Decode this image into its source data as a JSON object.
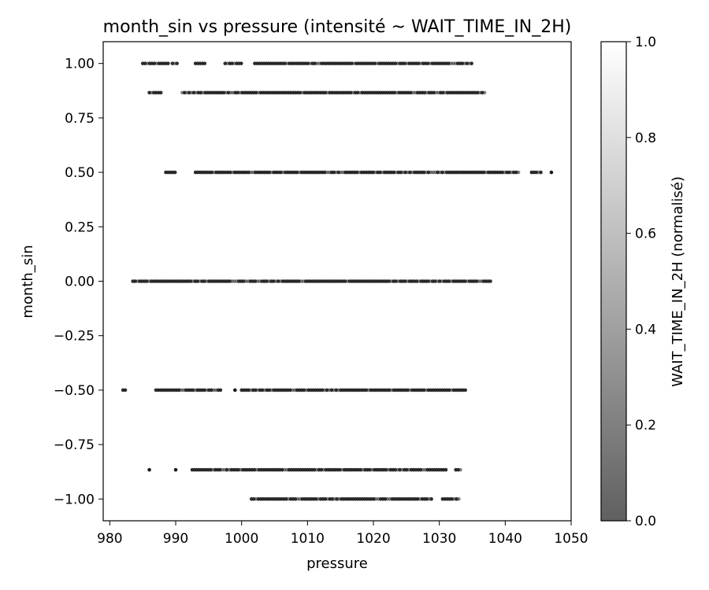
{
  "chart_data": {
    "type": "scatter",
    "title": "month_sin vs pressure (intensité ~ WAIT_TIME_IN_2H)",
    "xlabel": "pressure",
    "ylabel": "month_sin",
    "xlim": [
      979,
      1050
    ],
    "ylim": [
      -1.1,
      1.1
    ],
    "xticks": [
      980,
      990,
      1000,
      1010,
      1020,
      1030,
      1040,
      1050
    ],
    "xtick_labels": [
      "980",
      "990",
      "1000",
      "1010",
      "1020",
      "1030",
      "1040",
      "1050"
    ],
    "yticks": [
      -1.0,
      -0.75,
      -0.5,
      -0.25,
      0.0,
      0.25,
      0.5,
      0.75,
      1.0
    ],
    "ytick_labels": [
      "−1.00",
      "−0.75",
      "−0.50",
      "−0.25",
      "0.00",
      "0.25",
      "0.50",
      "0.75",
      "1.00"
    ],
    "grid": false,
    "colorbar": {
      "label": "WAIT_TIME_IN_2H (normalisé)",
      "range": [
        0,
        1
      ],
      "ticks": [
        0,
        0.2,
        0.4,
        0.6,
        0.8,
        1.0
      ],
      "tick_labels": [
        "0.0",
        "0.2",
        "0.4",
        "0.6",
        "0.8",
        "1.0"
      ],
      "color_low": "#606060",
      "color_high": "#ffffff"
    },
    "point_color": "#1a1a1a",
    "rows": [
      {
        "y": 1.0,
        "segments": [
          [
            985,
            989
          ],
          [
            989.5,
            990.5
          ],
          [
            993,
            994.5
          ],
          [
            997.5,
            1000
          ],
          [
            1002,
            1035
          ]
        ]
      },
      {
        "y": 0.866,
        "segments": [
          [
            986,
            988
          ],
          [
            991,
            1037
          ]
        ]
      },
      {
        "y": 0.5,
        "segments": [
          [
            988.5,
            990
          ],
          [
            993,
            1042
          ],
          [
            1044,
            1045.5
          ],
          [
            1047,
            1047
          ]
        ]
      },
      {
        "y": 0.0,
        "segments": [
          [
            983.5,
            1038
          ]
        ]
      },
      {
        "y": -0.5,
        "segments": [
          [
            982,
            982.5
          ],
          [
            987,
            997
          ],
          [
            999,
            999
          ],
          [
            1000,
            1034
          ]
        ]
      },
      {
        "y": -0.866,
        "segments": [
          [
            986,
            986
          ],
          [
            990,
            990
          ],
          [
            992.5,
            1031
          ],
          [
            1032.5,
            1033.5
          ]
        ]
      },
      {
        "y": -1.0,
        "segments": [
          [
            1001.5,
            1029
          ],
          [
            1030.5,
            1033
          ]
        ]
      }
    ]
  }
}
